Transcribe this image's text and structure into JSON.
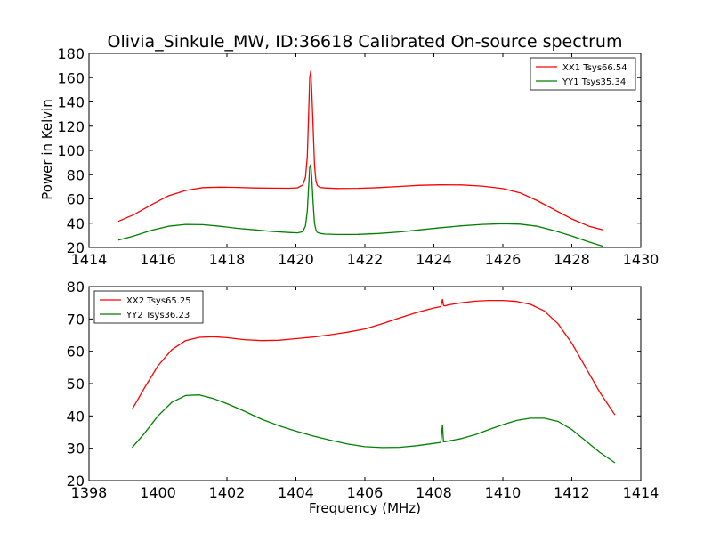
{
  "figure": {
    "title": "Olivia_Sinkule_MW, ID:36618 Calibrated On-source spectrum",
    "xlabel": "Frequency (MHz)",
    "ylabel": "Power in Kelvin"
  },
  "chart_data": [
    {
      "type": "line",
      "title": "Olivia_Sinkule_MW, ID:36618 Calibrated On-source spectrum",
      "xlabel": "",
      "ylabel": "Power in Kelvin",
      "xlim": [
        1414,
        1430
      ],
      "ylim": [
        20,
        180
      ],
      "xticks": [
        1414,
        1416,
        1418,
        1420,
        1422,
        1424,
        1426,
        1428,
        1430
      ],
      "yticks": [
        20,
        40,
        60,
        80,
        100,
        120,
        140,
        160,
        180
      ],
      "grid": false,
      "legend": "top-right",
      "series": [
        {
          "name": "XX1 Tsys66.54",
          "color": "#ff0000",
          "x": [
            1414.85,
            1415.3,
            1415.8,
            1416.3,
            1416.8,
            1417.3,
            1417.8,
            1418.3,
            1418.8,
            1419.3,
            1419.8,
            1420.05,
            1420.2,
            1420.28,
            1420.33,
            1420.37,
            1420.4,
            1420.43,
            1420.46,
            1420.5,
            1420.54,
            1420.58,
            1420.62,
            1420.7,
            1420.85,
            1421.2,
            1421.8,
            1422.4,
            1423.0,
            1423.6,
            1424.2,
            1424.8,
            1425.4,
            1426.0,
            1426.5,
            1427.0,
            1427.5,
            1428.0,
            1428.5,
            1428.9
          ],
          "values": [
            41.5,
            47.0,
            55.0,
            62.5,
            67.0,
            69.3,
            69.7,
            69.5,
            69.0,
            68.9,
            68.8,
            69.2,
            71.5,
            78.0,
            95.0,
            130.0,
            160.0,
            165.5,
            150.0,
            118.0,
            88.0,
            75.0,
            71.0,
            69.5,
            69.0,
            68.6,
            68.7,
            69.3,
            70.3,
            71.2,
            71.6,
            71.5,
            70.6,
            68.5,
            65.0,
            58.5,
            51.0,
            43.5,
            37.5,
            34.5
          ]
        },
        {
          "name": "YY1 Tsys35.34",
          "color": "#008000",
          "x": [
            1414.85,
            1415.3,
            1415.8,
            1416.3,
            1416.8,
            1417.3,
            1417.8,
            1418.3,
            1418.8,
            1419.3,
            1419.8,
            1420.05,
            1420.2,
            1420.28,
            1420.33,
            1420.37,
            1420.4,
            1420.43,
            1420.46,
            1420.5,
            1420.54,
            1420.58,
            1420.62,
            1420.7,
            1420.85,
            1421.2,
            1421.8,
            1422.4,
            1423.0,
            1423.6,
            1424.2,
            1424.8,
            1425.4,
            1426.0,
            1426.5,
            1427.0,
            1427.5,
            1428.0,
            1428.5,
            1428.9
          ],
          "values": [
            26.0,
            29.5,
            34.0,
            37.5,
            39.0,
            38.8,
            37.5,
            35.8,
            34.5,
            33.2,
            32.3,
            32.0,
            33.0,
            38.0,
            50.0,
            70.0,
            86.0,
            88.5,
            78.0,
            56.0,
            40.0,
            34.5,
            32.5,
            31.6,
            31.0,
            30.7,
            30.8,
            31.5,
            32.8,
            34.5,
            36.3,
            37.8,
            39.0,
            39.6,
            39.2,
            37.5,
            33.8,
            29.5,
            24.5,
            21.0
          ]
        }
      ]
    },
    {
      "type": "line",
      "title": "",
      "xlabel": "Frequency (MHz)",
      "ylabel": "",
      "xlim": [
        1398,
        1414
      ],
      "ylim": [
        20,
        80
      ],
      "xticks": [
        1398,
        1400,
        1402,
        1404,
        1406,
        1408,
        1410,
        1412,
        1414
      ],
      "yticks": [
        20,
        30,
        40,
        50,
        60,
        70,
        80
      ],
      "grid": false,
      "legend": "top-left",
      "series": [
        {
          "name": "XX2 Tsys65.25",
          "color": "#ff0000",
          "x": [
            1399.25,
            1399.6,
            1400.0,
            1400.4,
            1400.8,
            1401.2,
            1401.6,
            1402.0,
            1402.5,
            1403.0,
            1403.5,
            1404.0,
            1404.5,
            1405.0,
            1405.5,
            1406.0,
            1406.5,
            1407.0,
            1407.5,
            1408.0,
            1408.2,
            1408.25,
            1408.28,
            1408.32,
            1408.4,
            1408.8,
            1409.2,
            1409.6,
            1410.0,
            1410.4,
            1410.8,
            1411.2,
            1411.6,
            1412.0,
            1412.4,
            1412.8,
            1413.25
          ],
          "values": [
            42.0,
            48.5,
            55.5,
            60.5,
            63.3,
            64.3,
            64.5,
            64.2,
            63.6,
            63.3,
            63.4,
            63.9,
            64.4,
            65.1,
            65.9,
            66.9,
            68.5,
            70.3,
            72.0,
            73.4,
            73.8,
            76.0,
            74.2,
            74.0,
            74.3,
            75.0,
            75.5,
            75.7,
            75.7,
            75.4,
            74.5,
            72.5,
            68.5,
            62.5,
            55.0,
            47.5,
            40.3
          ]
        },
        {
          "name": "YY2 Tsys36.23",
          "color": "#008000",
          "x": [
            1399.25,
            1399.6,
            1400.0,
            1400.4,
            1400.8,
            1401.2,
            1401.6,
            1402.0,
            1402.5,
            1403.0,
            1403.5,
            1404.0,
            1404.5,
            1405.0,
            1405.5,
            1406.0,
            1406.5,
            1407.0,
            1407.5,
            1408.0,
            1408.2,
            1408.25,
            1408.28,
            1408.32,
            1408.4,
            1408.8,
            1409.2,
            1409.6,
            1410.0,
            1410.4,
            1410.8,
            1411.2,
            1411.6,
            1412.0,
            1412.4,
            1412.8,
            1413.25
          ],
          "values": [
            30.2,
            34.5,
            40.0,
            44.2,
            46.3,
            46.5,
            45.4,
            43.8,
            41.5,
            39.0,
            37.0,
            35.3,
            33.8,
            32.5,
            31.3,
            30.5,
            30.2,
            30.3,
            30.8,
            31.5,
            31.8,
            37.2,
            32.0,
            32.0,
            32.2,
            33.0,
            34.2,
            35.8,
            37.3,
            38.6,
            39.3,
            39.3,
            38.3,
            35.8,
            32.3,
            28.8,
            25.5
          ]
        }
      ]
    }
  ]
}
